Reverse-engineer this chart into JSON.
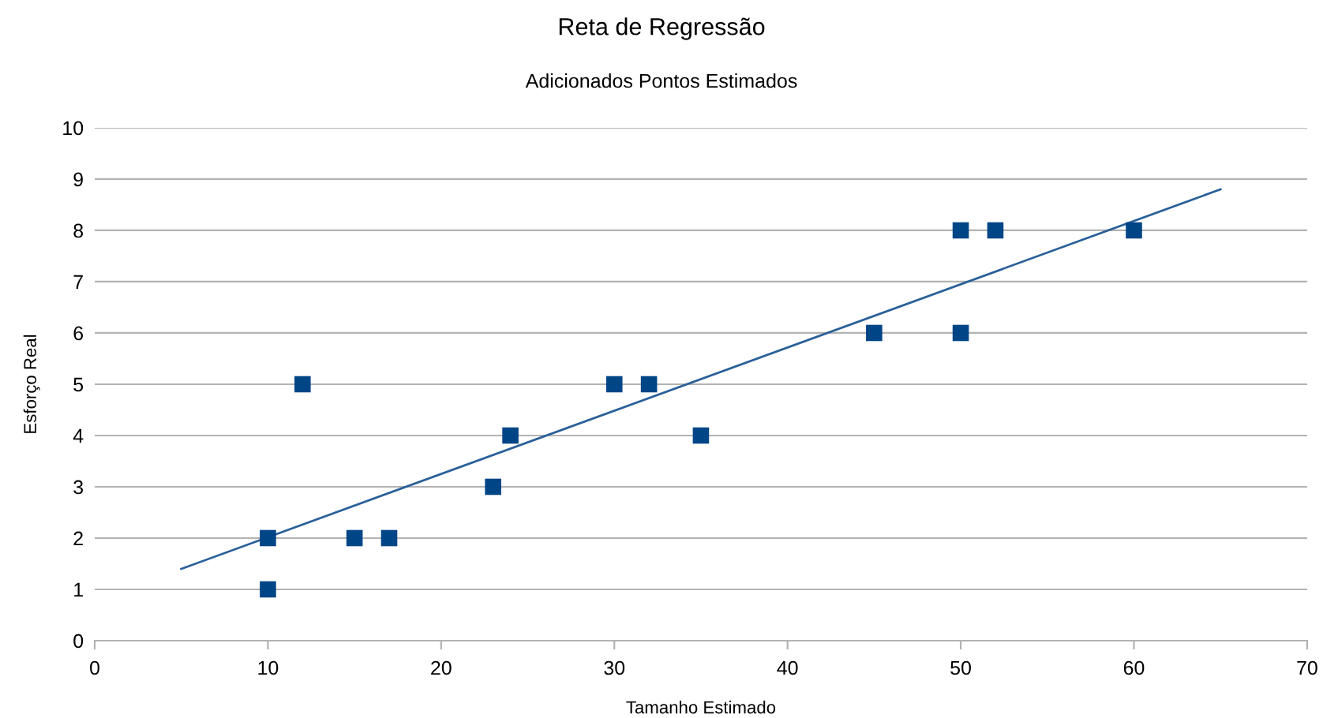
{
  "chart_data": {
    "type": "scatter",
    "title": "Reta de Regressão",
    "subtitle": "Adicionados Pontos Estimados",
    "xlabel": "Tamanho Estimado",
    "ylabel": "Esforço Real",
    "series": [
      {
        "type": "scatter",
        "color": "#004586",
        "marker": "square",
        "x": [
          10,
          10,
          12,
          15,
          17,
          23,
          24,
          30,
          32,
          35,
          45,
          50,
          50,
          52,
          60
        ],
        "values": [
          2,
          1,
          5,
          2,
          2,
          3,
          4,
          5,
          5,
          4,
          6,
          8,
          6,
          8,
          8
        ]
      },
      {
        "type": "line",
        "color": "#2a6099",
        "marker": "none",
        "line_style": "solid",
        "x": [
          5,
          65
        ],
        "values": [
          1.4,
          8.8
        ]
      }
    ],
    "xlim": [
      0,
      70
    ],
    "xticks": [
      0,
      10,
      20,
      30,
      40,
      50,
      60,
      70
    ],
    "ylim": [
      0,
      10
    ],
    "yticks": [
      0,
      1,
      2,
      3,
      4,
      5,
      6,
      7,
      8,
      9,
      10
    ],
    "grid": "y"
  }
}
